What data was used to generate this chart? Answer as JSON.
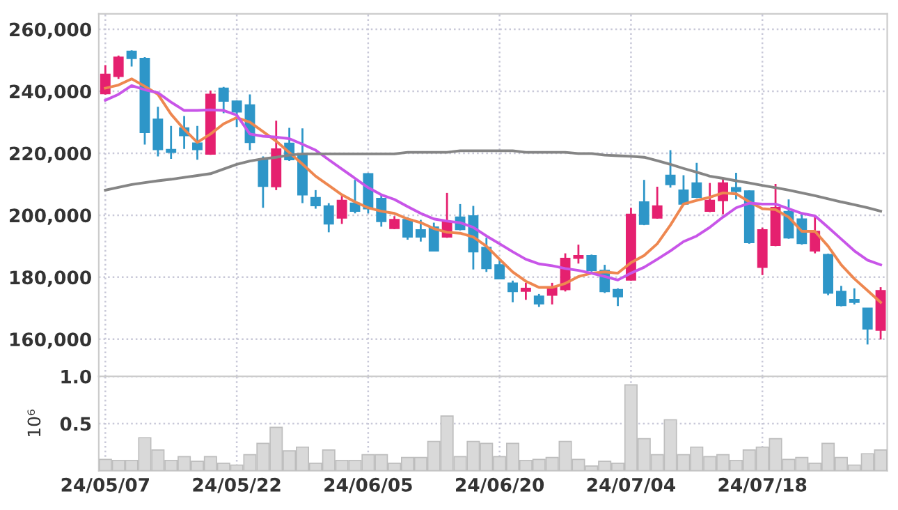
{
  "chart_data": [
    {
      "type": "candlestick",
      "tick_labels": "y",
      "grid": true,
      "categories": [
        null,
        null,
        null,
        null,
        null,
        null,
        null,
        null,
        null,
        null,
        null,
        null,
        null,
        null,
        null,
        null,
        null,
        null,
        null,
        null,
        null,
        null,
        null,
        null,
        null,
        null,
        null,
        null,
        null,
        null,
        null,
        null,
        null,
        null,
        null,
        null,
        null,
        null,
        null,
        null,
        null,
        null,
        null,
        null,
        null,
        null,
        null,
        null,
        null,
        null,
        null,
        null,
        null,
        null,
        null,
        null,
        null,
        null,
        null,
        null
      ],
      "ohlc": [
        [
          239200,
          248400,
          238900,
          245500
        ],
        [
          244800,
          251500,
          244000,
          251000
        ],
        [
          252900,
          253200,
          248000,
          250600
        ],
        [
          250600,
          251000,
          222800,
          226700
        ],
        [
          231000,
          235000,
          219000,
          221200
        ],
        [
          221200,
          228800,
          218200,
          220300
        ],
        [
          228200,
          232000,
          221400,
          225700
        ],
        [
          223300,
          228800,
          217900,
          221200
        ],
        [
          219700,
          240200,
          219500,
          239000
        ],
        [
          241000,
          241400,
          232900,
          236800
        ],
        [
          236800,
          237000,
          228500,
          233300
        ],
        [
          235600,
          239000,
          221000,
          223500
        ],
        [
          217900,
          219000,
          202400,
          209300
        ],
        [
          209200,
          230500,
          208100,
          221400
        ],
        [
          223200,
          228200,
          217500,
          217900
        ],
        [
          219400,
          228000,
          203900,
          206600
        ],
        [
          205700,
          208100,
          202100,
          203100
        ],
        [
          203000,
          203900,
          194500,
          197200
        ],
        [
          199100,
          206200,
          197200,
          204800
        ],
        [
          203900,
          211400,
          200600,
          201300
        ],
        [
          213400,
          213600,
          200600,
          202100
        ],
        [
          205400,
          206900,
          196300,
          198000
        ],
        [
          195700,
          199700,
          195500,
          198600
        ],
        [
          198600,
          199400,
          192100,
          193000
        ],
        [
          195300,
          198500,
          191500,
          193000
        ],
        [
          196200,
          197600,
          188300,
          188500
        ],
        [
          193000,
          207200,
          192700,
          198000
        ],
        [
          199400,
          203600,
          195100,
          195400
        ],
        [
          199800,
          203000,
          182500,
          188200
        ],
        [
          189600,
          192700,
          181700,
          182800
        ],
        [
          184000,
          185800,
          179300,
          179500
        ],
        [
          178100,
          178900,
          171900,
          175400
        ],
        [
          175500,
          178200,
          172700,
          176400
        ],
        [
          173900,
          174600,
          170400,
          171400
        ],
        [
          174200,
          178200,
          171200,
          176700
        ],
        [
          176000,
          187700,
          175400,
          186100
        ],
        [
          186100,
          190500,
          184400,
          187000
        ],
        [
          187000,
          187300,
          181800,
          182200
        ],
        [
          182200,
          184000,
          174900,
          175400
        ],
        [
          176000,
          176400,
          170700,
          173700
        ],
        [
          179100,
          202400,
          178900,
          200300
        ],
        [
          204300,
          211400,
          196800,
          197100
        ],
        [
          199100,
          209200,
          198900,
          203000
        ],
        [
          212900,
          221000,
          208900,
          209900
        ],
        [
          208100,
          212900,
          203300,
          203600
        ],
        [
          210400,
          216900,
          205500,
          205800
        ],
        [
          201300,
          210400,
          201000,
          204800
        ],
        [
          204700,
          211900,
          200300,
          210400
        ],
        [
          208900,
          213700,
          205100,
          207700
        ],
        [
          207800,
          208000,
          190800,
          191200
        ],
        [
          183200,
          196000,
          180700,
          195300
        ],
        [
          190300,
          210100,
          190000,
          202500
        ],
        [
          201200,
          205100,
          192400,
          192700
        ],
        [
          198800,
          200600,
          190500,
          190900
        ],
        [
          188500,
          199800,
          187700,
          194800
        ],
        [
          187300,
          187600,
          174200,
          174900
        ],
        [
          175400,
          177200,
          170600,
          170900
        ],
        [
          172800,
          176400,
          171200,
          171900
        ],
        [
          170000,
          170000,
          158300,
          163300
        ],
        [
          162900,
          176800,
          159900,
          175700
        ]
      ],
      "colors": [
        "#e5206f",
        "#e5206f",
        "#2e96c8",
        "#2e96c8",
        "#2e96c8",
        "#2e96c8",
        "#2e96c8",
        "#2e96c8",
        "#e5206f",
        "#2e96c8",
        "#2e96c8",
        "#2e96c8",
        "#2e96c8",
        "#e5206f",
        "#2e96c8",
        "#2e96c8",
        "#2e96c8",
        "#2e96c8",
        "#e5206f",
        "#2e96c8",
        "#2e96c8",
        "#2e96c8",
        "#e5206f",
        "#2e96c8",
        "#2e96c8",
        "#2e96c8",
        "#e5206f",
        "#2e96c8",
        "#2e96c8",
        "#2e96c8",
        "#2e96c8",
        "#2e96c8",
        "#e5206f",
        "#2e96c8",
        "#e5206f",
        "#e5206f",
        "#e5206f",
        "#2e96c8",
        "#2e96c8",
        "#2e96c8",
        "#e5206f",
        "#2e96c8",
        "#e5206f",
        "#2e96c8",
        "#2e96c8",
        "#2e96c8",
        "#e5206f",
        "#e5206f",
        "#2e96c8",
        "#2e96c8",
        "#e5206f",
        "#e5206f",
        "#2e96c8",
        "#2e96c8",
        "#e5206f",
        "#2e96c8",
        "#2e96c8",
        "#2e96c8",
        "#2e96c8",
        "#e5206f"
      ],
      "series": [
        {
          "type": "line",
          "color": "#ee8750",
          "values": [
            241000,
            242000,
            244000,
            241600,
            239000,
            232600,
            227700,
            223500,
            226200,
            229500,
            231500,
            230000,
            227000,
            223900,
            220200,
            216500,
            212600,
            209600,
            206600,
            204300,
            202400,
            201300,
            200600,
            198800,
            197600,
            195700,
            194500,
            194200,
            193000,
            190000,
            185800,
            181700,
            178700,
            176700,
            176700,
            178000,
            180200,
            181300,
            181700,
            181300,
            184700,
            187000,
            190800,
            196800,
            203600,
            204800,
            205800,
            207200,
            206900,
            204300,
            202100,
            201800,
            199400,
            194800,
            194800,
            190000,
            184000,
            179500,
            175700,
            171900
          ]
        },
        {
          "type": "line",
          "color": "#c855e8",
          "values": [
            237100,
            239000,
            241800,
            240500,
            239500,
            236500,
            233800,
            233800,
            234000,
            233800,
            232300,
            226200,
            225500,
            225200,
            224700,
            222900,
            221000,
            217900,
            214900,
            211900,
            208900,
            206600,
            205100,
            202800,
            200600,
            198800,
            198100,
            197600,
            196100,
            193300,
            190800,
            188200,
            185800,
            184300,
            183700,
            182800,
            182200,
            181300,
            180200,
            179100,
            181300,
            183200,
            185800,
            188500,
            191500,
            193300,
            196100,
            199400,
            202400,
            203900,
            203600,
            203600,
            202100,
            200600,
            199800,
            196100,
            192300,
            188500,
            185500,
            184000
          ]
        },
        {
          "type": "line",
          "color": "#858585",
          "values": [
            208100,
            209000,
            209900,
            210500,
            211100,
            211600,
            212200,
            212800,
            213400,
            214900,
            216400,
            217500,
            218200,
            218700,
            219400,
            219800,
            219800,
            219800,
            219800,
            219800,
            219800,
            219800,
            219800,
            220300,
            220300,
            220300,
            220300,
            220800,
            220800,
            220800,
            220800,
            220800,
            220300,
            220300,
            220300,
            220300,
            219900,
            219900,
            219400,
            219200,
            219000,
            218700,
            217600,
            216400,
            215100,
            213900,
            212600,
            211900,
            211100,
            210400,
            209600,
            208900,
            208100,
            207200,
            206300,
            205300,
            204300,
            203400,
            202400,
            201300
          ]
        }
      ],
      "ylim": [
        148000,
        265000
      ],
      "yticks": [
        {
          "value": 160000,
          "label": "160,000"
        },
        {
          "value": 180000,
          "label": "180,000"
        },
        {
          "value": 200000,
          "label": "200,000"
        },
        {
          "value": 220000,
          "label": "220,000"
        },
        {
          "value": 240000,
          "label": "240,000"
        },
        {
          "value": 260000,
          "label": "260,000"
        }
      ]
    },
    {
      "type": "bar",
      "grid": true,
      "ylabel": "10⁶",
      "color": "#d9d9d9",
      "categories": [
        "24/05/07",
        null,
        null,
        null,
        null,
        null,
        null,
        null,
        null,
        null,
        "24/05/22",
        null,
        null,
        null,
        null,
        null,
        null,
        null,
        null,
        null,
        "24/06/05",
        null,
        null,
        null,
        null,
        null,
        null,
        null,
        null,
        null,
        "24/06/20",
        null,
        null,
        null,
        null,
        null,
        null,
        null,
        null,
        null,
        "24/07/04",
        null,
        null,
        null,
        null,
        null,
        null,
        null,
        null,
        null,
        "24/07/18",
        null,
        null,
        null,
        null,
        null,
        null,
        null,
        null,
        null
      ],
      "values": [
        0.12,
        0.11,
        0.11,
        0.35,
        0.22,
        0.11,
        0.15,
        0.1,
        0.15,
        0.08,
        0.06,
        0.17,
        0.29,
        0.46,
        0.21,
        0.25,
        0.08,
        0.22,
        0.11,
        0.11,
        0.17,
        0.17,
        0.08,
        0.14,
        0.14,
        0.31,
        0.58,
        0.15,
        0.31,
        0.29,
        0.15,
        0.29,
        0.11,
        0.12,
        0.14,
        0.31,
        0.12,
        0.05,
        0.1,
        0.08,
        0.91,
        0.34,
        0.17,
        0.54,
        0.17,
        0.25,
        0.15,
        0.17,
        0.11,
        0.22,
        0.25,
        0.34,
        0.12,
        0.14,
        0.08,
        0.29,
        0.14,
        0.06,
        0.18,
        0.22
      ],
      "ylim": [
        0,
        1.0
      ],
      "yticks": [
        0.5,
        {
          "value": 1.0,
          "label": "1.0"
        }
      ]
    }
  ]
}
